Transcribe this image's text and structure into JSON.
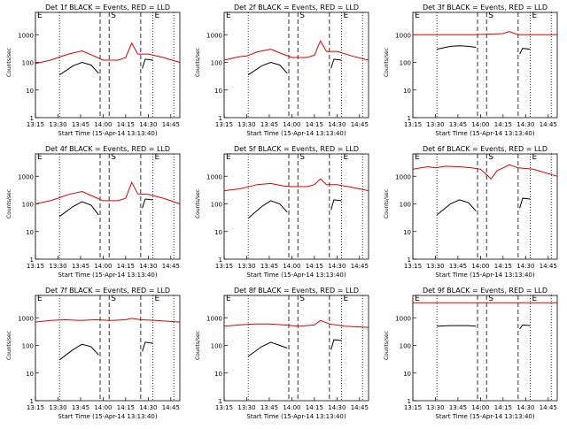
{
  "chart_data": {
    "type": "line",
    "scale": "log",
    "ylim": [
      1,
      10000
    ],
    "xlabel": "Start Time (15-Apr-14 13:13:40)",
    "ylabel": "Counts/sec",
    "x_ticks": [
      "13:15",
      "13:30",
      "13:45",
      "14:00",
      "14:15",
      "14:30",
      "14:45"
    ],
    "x_tick_minutes": [
      0,
      15,
      30,
      45,
      60,
      75,
      90
    ],
    "x_range_minutes": [
      0,
      96
    ],
    "markers": [
      {
        "label": "E",
        "minute": 0,
        "style": "dotted"
      },
      {
        "label": "S",
        "minute": 49,
        "style": "dashed"
      },
      {
        "label": "E",
        "minute": 78,
        "style": "dotted"
      }
    ],
    "extra_lines": [
      {
        "minute": 16,
        "style": "dotted"
      },
      {
        "minute": 43,
        "style": "dashed"
      },
      {
        "minute": 70,
        "style": "dashed"
      },
      {
        "minute": 92,
        "style": "dotted"
      }
    ],
    "colors": {
      "events": "#000000",
      "lld": "#e00000"
    },
    "panels": [
      {
        "title": "Det 1f BLACK = Events, RED = LLD",
        "events": [
          [
            16,
            35
          ],
          [
            25,
            75
          ],
          [
            31,
            100
          ],
          [
            37,
            80
          ],
          [
            42,
            40
          ]
        ],
        "events2": [
          [
            71,
            60
          ],
          [
            73,
            130
          ],
          [
            78,
            120
          ]
        ],
        "lld": [
          [
            0,
            90
          ],
          [
            10,
            120
          ],
          [
            15,
            150
          ],
          [
            22,
            200
          ],
          [
            31,
            260
          ],
          [
            39,
            170
          ],
          [
            45,
            120
          ],
          [
            55,
            120
          ],
          [
            60,
            150
          ],
          [
            64,
            500
          ],
          [
            68,
            200
          ],
          [
            75,
            200
          ],
          [
            85,
            150
          ],
          [
            96,
            100
          ]
        ]
      },
      {
        "title": "Det 2f BLACK = Events, RED = LLD",
        "events": [
          [
            16,
            35
          ],
          [
            25,
            75
          ],
          [
            31,
            100
          ],
          [
            37,
            80
          ],
          [
            42,
            40
          ]
        ],
        "events2": [
          [
            71,
            60
          ],
          [
            73,
            130
          ],
          [
            78,
            120
          ]
        ],
        "lld": [
          [
            0,
            120
          ],
          [
            10,
            160
          ],
          [
            15,
            170
          ],
          [
            22,
            240
          ],
          [
            31,
            300
          ],
          [
            39,
            200
          ],
          [
            45,
            150
          ],
          [
            55,
            150
          ],
          [
            60,
            180
          ],
          [
            64,
            600
          ],
          [
            68,
            250
          ],
          [
            75,
            250
          ],
          [
            85,
            170
          ],
          [
            96,
            120
          ]
        ]
      },
      {
        "title": "Det 3f BLACK = Events, RED = LLD",
        "events": [
          [
            16,
            300
          ],
          [
            25,
            380
          ],
          [
            31,
            400
          ],
          [
            37,
            380
          ],
          [
            42,
            350
          ]
        ],
        "events2": [
          [
            71,
            200
          ],
          [
            73,
            320
          ],
          [
            78,
            300
          ]
        ],
        "lld": [
          [
            0,
            1000
          ],
          [
            20,
            1000
          ],
          [
            40,
            1000
          ],
          [
            60,
            1100
          ],
          [
            64,
            1300
          ],
          [
            70,
            1000
          ],
          [
            96,
            1000
          ]
        ]
      },
      {
        "title": "Det 4f BLACK = Events, RED = LLD",
        "events": [
          [
            16,
            35
          ],
          [
            25,
            80
          ],
          [
            31,
            120
          ],
          [
            37,
            90
          ],
          [
            42,
            40
          ]
        ],
        "events2": [
          [
            71,
            70
          ],
          [
            73,
            150
          ],
          [
            78,
            140
          ]
        ],
        "lld": [
          [
            0,
            100
          ],
          [
            10,
            130
          ],
          [
            15,
            160
          ],
          [
            22,
            220
          ],
          [
            31,
            280
          ],
          [
            39,
            180
          ],
          [
            45,
            130
          ],
          [
            55,
            130
          ],
          [
            60,
            160
          ],
          [
            64,
            600
          ],
          [
            68,
            230
          ],
          [
            75,
            220
          ],
          [
            85,
            160
          ],
          [
            96,
            100
          ]
        ]
      },
      {
        "title": "Det 5f BLACK = Events, RED = LLD",
        "events": [
          [
            16,
            30
          ],
          [
            25,
            80
          ],
          [
            31,
            130
          ],
          [
            37,
            100
          ],
          [
            42,
            50
          ]
        ],
        "events2": [
          [
            71,
            60
          ],
          [
            73,
            140
          ],
          [
            78,
            130
          ]
        ],
        "lld": [
          [
            0,
            300
          ],
          [
            10,
            350
          ],
          [
            15,
            400
          ],
          [
            22,
            500
          ],
          [
            31,
            550
          ],
          [
            39,
            450
          ],
          [
            45,
            420
          ],
          [
            55,
            420
          ],
          [
            60,
            500
          ],
          [
            64,
            800
          ],
          [
            68,
            500
          ],
          [
            75,
            500
          ],
          [
            85,
            400
          ],
          [
            96,
            300
          ]
        ]
      },
      {
        "title": "Det 6f BLACK = Events, RED = LLD",
        "events": [
          [
            16,
            40
          ],
          [
            25,
            100
          ],
          [
            31,
            140
          ],
          [
            37,
            110
          ],
          [
            42,
            55
          ]
        ],
        "events2": [
          [
            71,
            70
          ],
          [
            73,
            160
          ],
          [
            78,
            150
          ]
        ],
        "lld": [
          [
            0,
            1800
          ],
          [
            10,
            2200
          ],
          [
            15,
            2000
          ],
          [
            22,
            2300
          ],
          [
            31,
            2200
          ],
          [
            39,
            2000
          ],
          [
            45,
            1800
          ],
          [
            52,
            800
          ],
          [
            56,
            1600
          ],
          [
            60,
            2000
          ],
          [
            64,
            2600
          ],
          [
            70,
            2000
          ],
          [
            80,
            1800
          ],
          [
            96,
            1000
          ]
        ]
      },
      {
        "title": "Det 7f BLACK = Events, RED = LLD",
        "events": [
          [
            16,
            30
          ],
          [
            25,
            70
          ],
          [
            31,
            110
          ],
          [
            37,
            90
          ],
          [
            42,
            45
          ]
        ],
        "events2": [
          [
            71,
            60
          ],
          [
            73,
            130
          ],
          [
            78,
            120
          ]
        ],
        "lld": [
          [
            0,
            700
          ],
          [
            10,
            800
          ],
          [
            20,
            850
          ],
          [
            30,
            800
          ],
          [
            40,
            850
          ],
          [
            50,
            800
          ],
          [
            60,
            850
          ],
          [
            64,
            950
          ],
          [
            70,
            850
          ],
          [
            80,
            800
          ],
          [
            96,
            700
          ]
        ]
      },
      {
        "title": "Det 8f BLACK = Events, RED = LLD",
        "events": [
          [
            16,
            40
          ],
          [
            25,
            90
          ],
          [
            31,
            130
          ],
          [
            37,
            100
          ],
          [
            42,
            80
          ]
        ],
        "events2": [
          [
            71,
            70
          ],
          [
            73,
            160
          ],
          [
            78,
            150
          ]
        ],
        "lld": [
          [
            0,
            500
          ],
          [
            10,
            550
          ],
          [
            20,
            600
          ],
          [
            30,
            600
          ],
          [
            40,
            550
          ],
          [
            50,
            500
          ],
          [
            60,
            550
          ],
          [
            64,
            800
          ],
          [
            70,
            600
          ],
          [
            80,
            500
          ],
          [
            96,
            450
          ]
        ]
      },
      {
        "title": "Det 9f BLACK = Events, RED = LLD",
        "events": [
          [
            16,
            500
          ],
          [
            25,
            520
          ],
          [
            31,
            520
          ],
          [
            37,
            520
          ],
          [
            42,
            500
          ]
        ],
        "events2": [
          [
            71,
            400
          ],
          [
            73,
            550
          ],
          [
            78,
            520
          ]
        ],
        "lld": [
          [
            0,
            3500
          ],
          [
            20,
            3500
          ],
          [
            40,
            3500
          ],
          [
            60,
            3500
          ],
          [
            80,
            3500
          ],
          [
            96,
            3500
          ]
        ]
      }
    ]
  }
}
